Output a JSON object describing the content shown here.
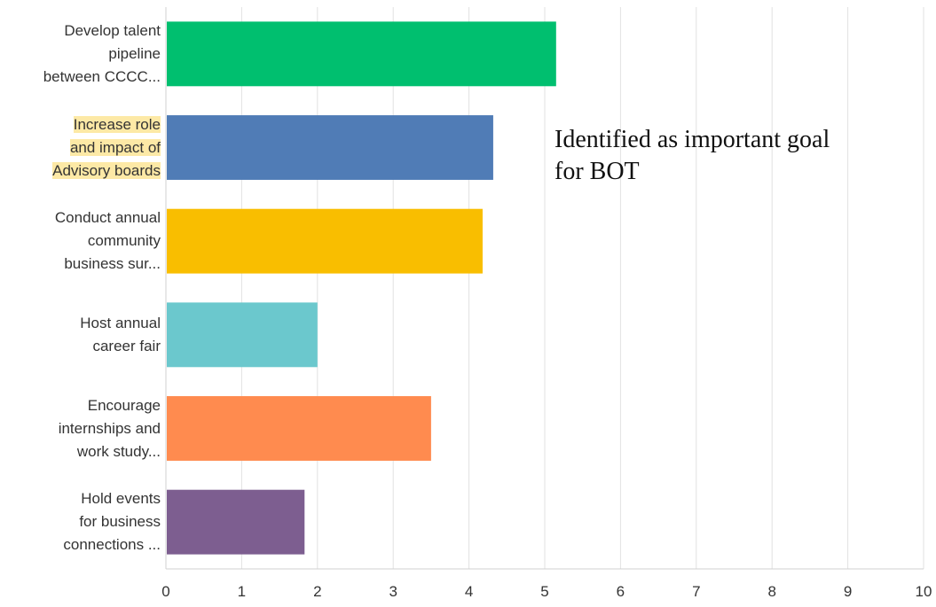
{
  "chart_data": {
    "type": "bar",
    "orientation": "horizontal",
    "categories": [
      [
        "Develop talent",
        "pipeline",
        "between CCCC..."
      ],
      [
        "Increase role",
        "and impact of",
        "Advisory boards"
      ],
      [
        "Conduct annual",
        "community",
        "business sur..."
      ],
      [
        "Host annual",
        "career fair"
      ],
      [
        "Encourage",
        "internships and",
        "work study..."
      ],
      [
        "Hold events",
        "for business",
        "connections ..."
      ]
    ],
    "values": [
      5.15,
      4.32,
      4.18,
      2.0,
      3.5,
      1.83
    ],
    "colors": [
      "#00bf6f",
      "#507cb6",
      "#f9be00",
      "#6bc8cd",
      "#ff8b4f",
      "#7d5e90"
    ],
    "highlighted_category": 1,
    "highlight_color": "#fde9a6",
    "xlim": [
      0,
      10
    ],
    "xticks": [
      "0",
      "1",
      "2",
      "3",
      "4",
      "5",
      "6",
      "7",
      "8",
      "9",
      "10"
    ],
    "grid": "vertical",
    "annotation": "Identified as important goal for BOT"
  }
}
